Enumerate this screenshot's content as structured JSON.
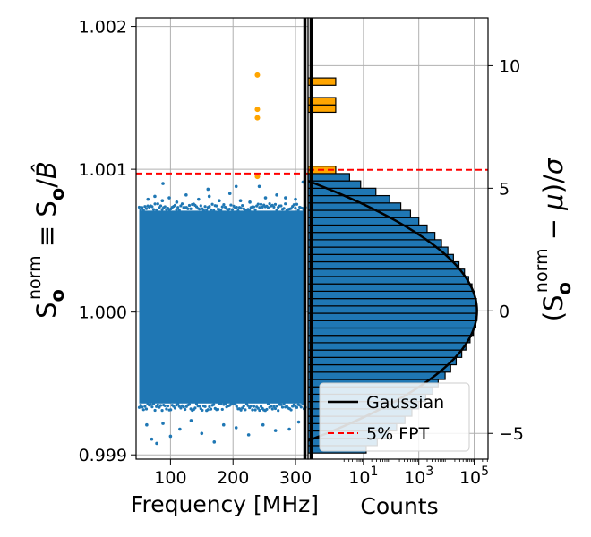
{
  "chart_data": [
    {
      "type": "scatter",
      "xlabel": "Frequency [MHz]",
      "xlim": [
        45,
        320
      ],
      "ylim": [
        0.99897,
        1.00206
      ],
      "xticks": [
        "100",
        "200",
        "300"
      ],
      "yticks": [
        "0.999",
        "1.000",
        "1.001",
        "1.002"
      ],
      "grid": true,
      "series": [
        {
          "color": "#1f77b4",
          "band_x": [
            50,
            316
          ],
          "band_y": [
            0.99936,
            1.00071
          ],
          "outliers": [
            {
              "x": 62,
              "y": 0.99921
            },
            {
              "x": 70,
              "y": 0.99911
            },
            {
              "x": 78,
              "y": 0.99908
            },
            {
              "x": 88,
              "y": 0.99922
            },
            {
              "x": 100,
              "y": 0.99913
            },
            {
              "x": 115,
              "y": 0.99918
            },
            {
              "x": 133,
              "y": 0.99924
            },
            {
              "x": 150,
              "y": 0.99915
            },
            {
              "x": 170,
              "y": 0.99909
            },
            {
              "x": 185,
              "y": 0.99921
            },
            {
              "x": 205,
              "y": 0.99919
            },
            {
              "x": 225,
              "y": 0.99914
            },
            {
              "x": 248,
              "y": 0.99921
            },
            {
              "x": 268,
              "y": 0.99917
            },
            {
              "x": 290,
              "y": 0.99918
            },
            {
              "x": 305,
              "y": 0.99923
            },
            {
              "x": 64,
              "y": 1.00079
            },
            {
              "x": 75,
              "y": 1.00081
            },
            {
              "x": 87,
              "y": 1.00078
            },
            {
              "x": 98,
              "y": 1.0008
            },
            {
              "x": 110,
              "y": 1.00077
            },
            {
              "x": 125,
              "y": 1.00082
            },
            {
              "x": 145,
              "y": 1.00079
            },
            {
              "x": 162,
              "y": 1.00081
            },
            {
              "x": 178,
              "y": 1.00078
            },
            {
              "x": 195,
              "y": 1.00083
            },
            {
              "x": 212,
              "y": 1.00078
            },
            {
              "x": 227,
              "y": 1.00077
            },
            {
              "x": 252,
              "y": 1.0008
            },
            {
              "x": 270,
              "y": 1.00082
            },
            {
              "x": 284,
              "y": 1.0008
            },
            {
              "x": 300,
              "y": 1.00079
            },
            {
              "x": 312,
              "y": 1.00091
            },
            {
              "x": 88,
              "y": 1.0009
            },
            {
              "x": 160,
              "y": 1.00086
            },
            {
              "x": 205,
              "y": 1.00088
            },
            {
              "x": 242,
              "y": 1.00088
            }
          ]
        },
        {
          "color": "#ffa500",
          "points": [
            {
              "x": 239,
              "y": 1.00166
            },
            {
              "x": 239,
              "y": 1.00142
            },
            {
              "x": 239,
              "y": 1.00136
            },
            {
              "x": 239,
              "y": 1.00095
            }
          ]
        }
      ],
      "threshold": {
        "y": 1.00097,
        "color": "#ff0000"
      }
    },
    {
      "type": "bar",
      "orientation": "horizontal",
      "xlabel": "Counts",
      "ylabel": "(Sₒⁿᵒʳᵐ − μ)/σ",
      "xscale": "log",
      "xlim_log10": [
        -1,
        5.5
      ],
      "ylim": [
        -6.05,
        11.95
      ],
      "yticks": [
        "−5",
        "0",
        "5",
        "10"
      ],
      "grid": true,
      "bins": [
        {
          "y0": -5.8,
          "y1": -5.5,
          "log10_count": 1.1
        },
        {
          "y0": -5.5,
          "y1": -5.2,
          "log10_count": 1.5
        },
        {
          "y0": -5.2,
          "y1": -4.9,
          "log10_count": 1.9
        },
        {
          "y0": -4.9,
          "y1": -4.6,
          "log10_count": 2.2
        },
        {
          "y0": -4.6,
          "y1": -4.3,
          "log10_count": 2.5
        },
        {
          "y0": -4.3,
          "y1": -4.0,
          "log10_count": 2.75
        },
        {
          "y0": -4.0,
          "y1": -3.7,
          "log10_count": 3.0
        },
        {
          "y0": -3.7,
          "y1": -3.4,
          "log10_count": 3.25
        },
        {
          "y0": -3.4,
          "y1": -3.1,
          "log10_count": 3.5
        },
        {
          "y0": -3.1,
          "y1": -2.8,
          "log10_count": 3.7
        },
        {
          "y0": -2.8,
          "y1": -2.5,
          "log10_count": 3.95
        },
        {
          "y0": -2.5,
          "y1": -2.2,
          "log10_count": 4.15
        },
        {
          "y0": -2.2,
          "y1": -1.9,
          "log10_count": 4.35
        },
        {
          "y0": -1.9,
          "y1": -1.6,
          "log10_count": 4.55
        },
        {
          "y0": -1.6,
          "y1": -1.3,
          "log10_count": 4.7
        },
        {
          "y0": -1.3,
          "y1": -1.0,
          "log10_count": 4.85
        },
        {
          "y0": -1.0,
          "y1": -0.7,
          "log10_count": 4.97
        },
        {
          "y0": -0.7,
          "y1": -0.4,
          "log10_count": 5.06
        },
        {
          "y0": -0.4,
          "y1": -0.1,
          "log10_count": 5.1
        },
        {
          "y0": -0.1,
          "y1": 0.2,
          "log10_count": 5.1
        },
        {
          "y0": 0.2,
          "y1": 0.5,
          "log10_count": 5.08
        },
        {
          "y0": 0.5,
          "y1": 0.8,
          "log10_count": 5.02
        },
        {
          "y0": 0.8,
          "y1": 1.1,
          "log10_count": 4.92
        },
        {
          "y0": 1.1,
          "y1": 1.4,
          "log10_count": 4.8
        },
        {
          "y0": 1.4,
          "y1": 1.7,
          "log10_count": 4.65
        },
        {
          "y0": 1.7,
          "y1": 2.0,
          "log10_count": 4.45
        },
        {
          "y0": 2.0,
          "y1": 2.3,
          "log10_count": 4.25
        },
        {
          "y0": 2.3,
          "y1": 2.6,
          "log10_count": 4.05
        },
        {
          "y0": 2.6,
          "y1": 2.9,
          "log10_count": 3.82
        },
        {
          "y0": 2.9,
          "y1": 3.2,
          "log10_count": 3.58
        },
        {
          "y0": 3.2,
          "y1": 3.5,
          "log10_count": 3.3
        },
        {
          "y0": 3.5,
          "y1": 3.8,
          "log10_count": 3.0
        },
        {
          "y0": 3.8,
          "y1": 4.1,
          "log10_count": 2.7
        },
        {
          "y0": 4.1,
          "y1": 4.4,
          "log10_count": 2.35
        },
        {
          "y0": 4.4,
          "y1": 4.7,
          "log10_count": 1.95
        },
        {
          "y0": 4.7,
          "y1": 5.0,
          "log10_count": 1.45
        },
        {
          "y0": 5.0,
          "y1": 5.3,
          "log10_count": 0.9
        },
        {
          "y0": 5.3,
          "y1": 5.6,
          "log10_count": 0.5
        }
      ],
      "outlier_bins": [
        {
          "y0": 5.6,
          "y1": 5.9,
          "log10_count": 0.0
        },
        {
          "y0": 8.1,
          "y1": 8.4,
          "log10_count": 0.0
        },
        {
          "y0": 8.4,
          "y1": 8.7,
          "log10_count": 0.0
        },
        {
          "y0": 9.2,
          "y1": 9.5,
          "log10_count": 0.0
        }
      ],
      "gaussian_color": "#000000",
      "bar_color": "#1f77b4",
      "outlier_color": "#ffa500",
      "threshold": {
        "y": 5.75,
        "color": "#ff0000"
      },
      "legend": {
        "placement": "lower-right",
        "entries": [
          {
            "label": "Gaussian",
            "style": "solid",
            "color": "#000000"
          },
          {
            "label": "5% FPT",
            "style": "dashed",
            "color": "#ff0000"
          }
        ]
      }
    }
  ]
}
